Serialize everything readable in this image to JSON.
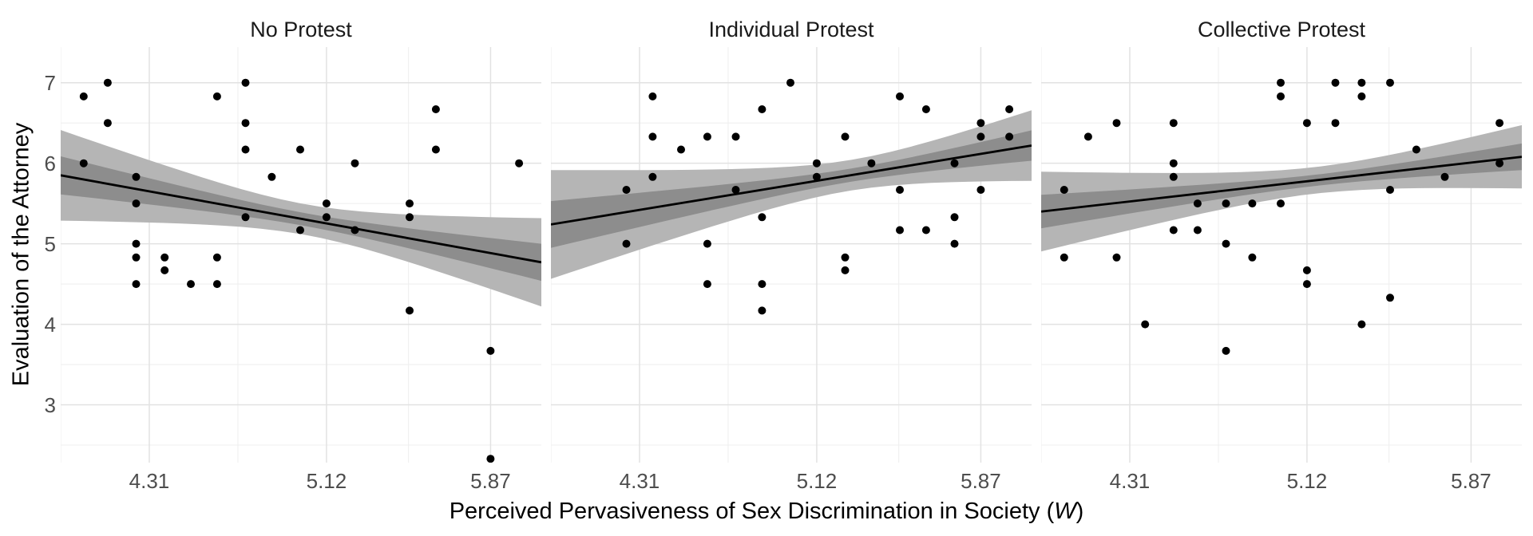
{
  "figure": {
    "ylabel": "Evaluation of the Attorney",
    "xlabel_main": "Perceived Pervasiveness of Sex Discrimination in Society (",
    "xlabel_var": "W",
    "xlabel_close": ")"
  },
  "axes": {
    "x_domain": [
      3.905,
      6.102
    ],
    "y_domain": [
      2.282,
      7.443
    ],
    "x_ticks": [
      {
        "value": 4.31,
        "label": "4.31"
      },
      {
        "value": 5.12,
        "label": "5.12"
      },
      {
        "value": 5.87,
        "label": "5.87"
      }
    ],
    "x_minor": [
      3.905,
      4.715,
      5.495
    ],
    "y_ticks": [
      {
        "value": 7,
        "label": "7"
      },
      {
        "value": 6,
        "label": "6"
      },
      {
        "value": 5,
        "label": "5"
      },
      {
        "value": 4,
        "label": "4"
      },
      {
        "value": 3,
        "label": "3"
      }
    ],
    "y_minor": [
      2.5,
      3.5,
      4.5,
      5.5,
      6.5
    ]
  },
  "style": {
    "point_color": "#000000",
    "line_color": "#000000",
    "outer_band_color": "#b5b5b5",
    "inner_band_color": "#8d8d8d",
    "grid_major": "#e2e2e2",
    "grid_minor": "#efefef",
    "tick_text": "#4d4d4d",
    "strip_text": "#1a1a1a"
  },
  "chart_data": [
    {
      "type": "scatter",
      "title": "No Protest",
      "regression": {
        "x1": 3.905,
        "y1": 5.85,
        "x2": 6.102,
        "y2": 4.77
      },
      "ci": {
        "center_x": 5.02,
        "spread": 0.4,
        "outer_min_halfwidth": 0.19,
        "inner_ratio": 0.42
      },
      "points": [
        [
          4.12,
          7.0
        ],
        [
          4.75,
          7.0
        ],
        [
          4.01,
          6.83
        ],
        [
          4.62,
          6.83
        ],
        [
          5.62,
          6.67
        ],
        [
          4.12,
          6.5
        ],
        [
          4.75,
          6.5
        ],
        [
          4.75,
          6.17
        ],
        [
          5.0,
          6.17
        ],
        [
          5.62,
          6.17
        ],
        [
          4.01,
          6.0
        ],
        [
          5.25,
          6.0
        ],
        [
          6.0,
          6.0
        ],
        [
          4.25,
          5.83
        ],
        [
          4.87,
          5.83
        ],
        [
          4.25,
          5.5
        ],
        [
          5.12,
          5.5
        ],
        [
          5.5,
          5.5
        ],
        [
          4.75,
          5.33
        ],
        [
          5.12,
          5.33
        ],
        [
          5.5,
          5.33
        ],
        [
          5.0,
          5.17
        ],
        [
          5.25,
          5.17
        ],
        [
          4.25,
          5.0
        ],
        [
          4.25,
          4.83
        ],
        [
          4.38,
          4.83
        ],
        [
          4.62,
          4.83
        ],
        [
          4.38,
          4.67
        ],
        [
          4.25,
          4.5
        ],
        [
          4.5,
          4.5
        ],
        [
          4.62,
          4.5
        ],
        [
          5.5,
          4.17
        ],
        [
          5.87,
          3.67
        ],
        [
          5.87,
          2.33
        ]
      ]
    },
    {
      "type": "scatter",
      "title": "Individual Protest",
      "regression": {
        "x1": 3.905,
        "y1": 5.24,
        "x2": 6.102,
        "y2": 6.22
      },
      "ci": {
        "center_x": 5.27,
        "spread": 0.4,
        "outer_min_halfwidth": 0.19,
        "inner_ratio": 0.43
      },
      "points": [
        [
          5.0,
          7.0
        ],
        [
          4.37,
          6.83
        ],
        [
          5.5,
          6.83
        ],
        [
          4.87,
          6.67
        ],
        [
          5.62,
          6.67
        ],
        [
          6.0,
          6.67
        ],
        [
          5.87,
          6.5
        ],
        [
          4.37,
          6.33
        ],
        [
          4.62,
          6.33
        ],
        [
          4.75,
          6.33
        ],
        [
          5.25,
          6.33
        ],
        [
          5.87,
          6.33
        ],
        [
          6.0,
          6.33
        ],
        [
          4.5,
          6.17
        ],
        [
          5.12,
          6.0
        ],
        [
          5.37,
          6.0
        ],
        [
          5.75,
          6.0
        ],
        [
          4.37,
          5.83
        ],
        [
          5.12,
          5.83
        ],
        [
          4.25,
          5.67
        ],
        [
          4.75,
          5.67
        ],
        [
          5.5,
          5.67
        ],
        [
          5.87,
          5.67
        ],
        [
          4.87,
          5.33
        ],
        [
          5.75,
          5.33
        ],
        [
          5.5,
          5.17
        ],
        [
          5.62,
          5.17
        ],
        [
          4.25,
          5.0
        ],
        [
          4.62,
          5.0
        ],
        [
          5.75,
          5.0
        ],
        [
          5.25,
          4.83
        ],
        [
          5.25,
          4.67
        ],
        [
          4.62,
          4.5
        ],
        [
          4.87,
          4.5
        ],
        [
          4.87,
          4.17
        ]
      ]
    },
    {
      "type": "scatter",
      "title": "Collective Protest",
      "regression": {
        "x1": 3.905,
        "y1": 5.4,
        "x2": 6.102,
        "y2": 6.08
      },
      "ci": {
        "center_x": 5.15,
        "spread": 0.44,
        "outer_min_halfwidth": 0.165,
        "inner_ratio": 0.42
      },
      "points": [
        [
          5.0,
          7.0
        ],
        [
          5.25,
          7.0
        ],
        [
          5.37,
          7.0
        ],
        [
          5.5,
          7.0
        ],
        [
          5.0,
          6.83
        ],
        [
          5.37,
          6.83
        ],
        [
          4.25,
          6.5
        ],
        [
          4.51,
          6.5
        ],
        [
          5.12,
          6.5
        ],
        [
          5.25,
          6.5
        ],
        [
          6.0,
          6.5
        ],
        [
          4.12,
          6.33
        ],
        [
          5.62,
          6.17
        ],
        [
          4.51,
          6.0
        ],
        [
          6.0,
          6.0
        ],
        [
          4.51,
          5.83
        ],
        [
          5.75,
          5.83
        ],
        [
          4.01,
          5.67
        ],
        [
          5.5,
          5.67
        ],
        [
          4.62,
          5.5
        ],
        [
          4.75,
          5.5
        ],
        [
          4.87,
          5.5
        ],
        [
          5.0,
          5.5
        ],
        [
          4.51,
          5.17
        ],
        [
          4.62,
          5.17
        ],
        [
          4.75,
          5.0
        ],
        [
          4.01,
          4.83
        ],
        [
          4.25,
          4.83
        ],
        [
          4.87,
          4.83
        ],
        [
          5.12,
          4.67
        ],
        [
          5.12,
          4.5
        ],
        [
          5.5,
          4.33
        ],
        [
          4.38,
          4.0
        ],
        [
          5.37,
          4.0
        ],
        [
          4.75,
          3.67
        ]
      ]
    }
  ]
}
